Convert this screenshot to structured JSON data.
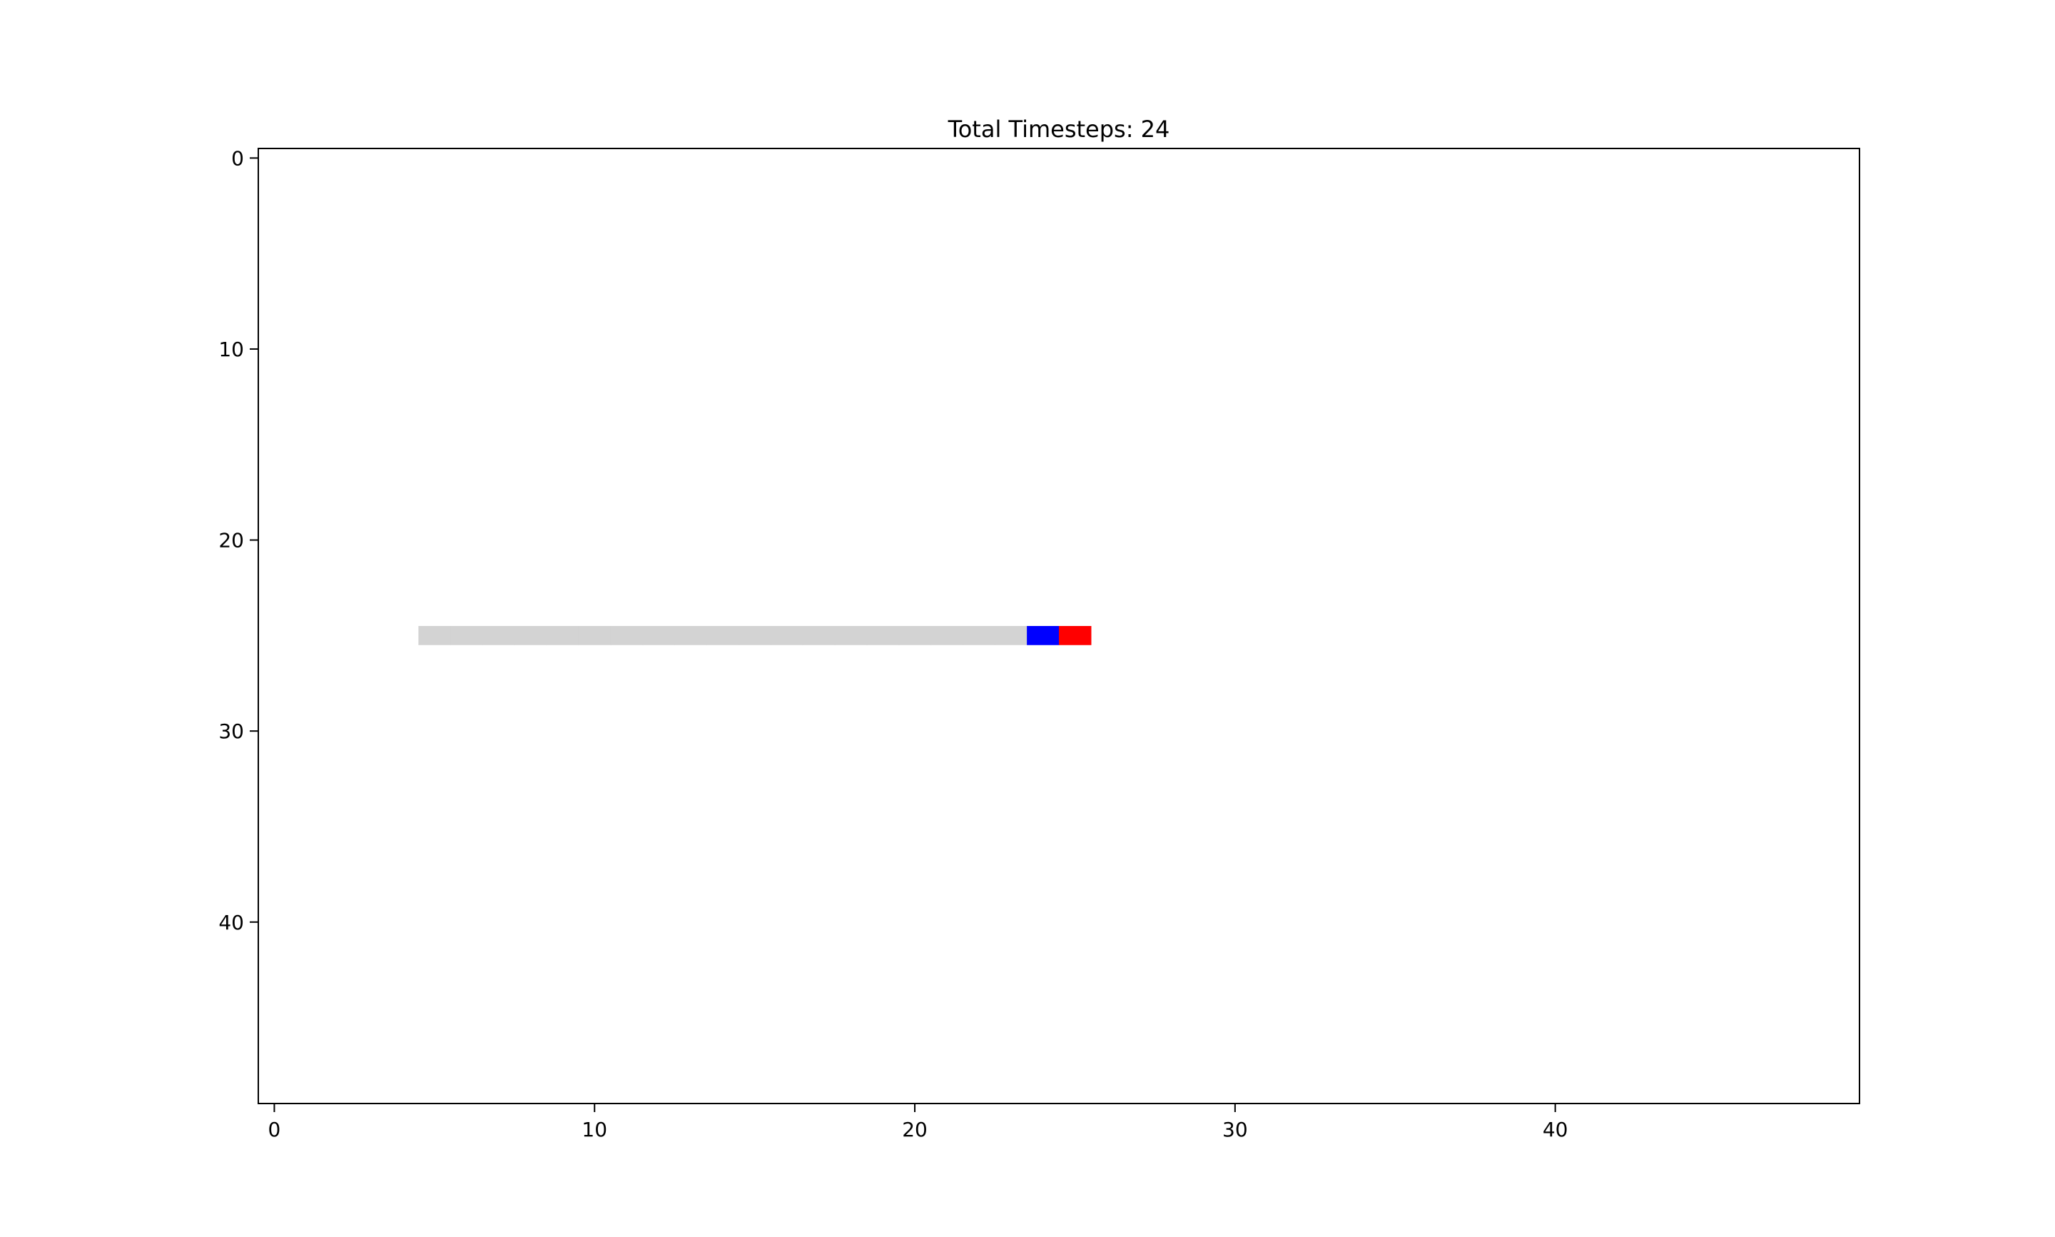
{
  "chart_data": {
    "type": "heatmap",
    "title": "Total Timesteps: 24",
    "xlabel": "",
    "ylabel": "",
    "xlim": [
      -0.5,
      49.5
    ],
    "ylim": [
      49.5,
      -0.5
    ],
    "y_axis_inverted": true,
    "grid": false,
    "legend": "none",
    "x_ticks": [
      0,
      10,
      20,
      30,
      40
    ],
    "y_ticks": [
      0,
      10,
      20,
      30,
      40
    ],
    "background_color": "#ffffff",
    "cells": [
      {
        "x": 5,
        "y": 25,
        "color": "#d3d3d3"
      },
      {
        "x": 6,
        "y": 25,
        "color": "#d3d3d3"
      },
      {
        "x": 7,
        "y": 25,
        "color": "#d3d3d3"
      },
      {
        "x": 8,
        "y": 25,
        "color": "#d3d3d3"
      },
      {
        "x": 9,
        "y": 25,
        "color": "#d3d3d3"
      },
      {
        "x": 10,
        "y": 25,
        "color": "#d3d3d3"
      },
      {
        "x": 11,
        "y": 25,
        "color": "#d3d3d3"
      },
      {
        "x": 12,
        "y": 25,
        "color": "#d3d3d3"
      },
      {
        "x": 13,
        "y": 25,
        "color": "#d3d3d3"
      },
      {
        "x": 14,
        "y": 25,
        "color": "#d3d3d3"
      },
      {
        "x": 15,
        "y": 25,
        "color": "#d3d3d3"
      },
      {
        "x": 16,
        "y": 25,
        "color": "#d3d3d3"
      },
      {
        "x": 17,
        "y": 25,
        "color": "#d3d3d3"
      },
      {
        "x": 18,
        "y": 25,
        "color": "#d3d3d3"
      },
      {
        "x": 19,
        "y": 25,
        "color": "#d3d3d3"
      },
      {
        "x": 20,
        "y": 25,
        "color": "#d3d3d3"
      },
      {
        "x": 21,
        "y": 25,
        "color": "#d3d3d3"
      },
      {
        "x": 22,
        "y": 25,
        "color": "#d3d3d3"
      },
      {
        "x": 23,
        "y": 25,
        "color": "#d3d3d3"
      },
      {
        "x": 24,
        "y": 25,
        "color": "#0000ff"
      },
      {
        "x": 25,
        "y": 25,
        "color": "#ff0000"
      }
    ]
  }
}
